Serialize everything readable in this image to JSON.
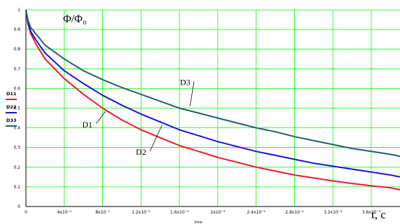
{
  "chart_data": {
    "type": "line",
    "ylabel": "Φ/Φ₀",
    "xlabel": "t, c",
    "xlabel_sub": "time",
    "xlim": [
      0,
      0.00039
    ],
    "ylim": [
      0,
      1
    ],
    "grid": true,
    "grid_color": "#00ff00",
    "x_ticks": [
      {
        "v": 0,
        "label": "0"
      },
      {
        "v": 4e-05,
        "label": "4x10⁻⁵"
      },
      {
        "v": 8e-05,
        "label": "8x10⁻⁵"
      },
      {
        "v": 0.00012,
        "label": "1.2x10⁻⁴"
      },
      {
        "v": 0.00016,
        "label": "1.6x10⁻⁴"
      },
      {
        "v": 0.0002,
        "label": "2x10⁻⁴"
      },
      {
        "v": 0.00024,
        "label": "2.4x10⁻⁴"
      },
      {
        "v": 0.00028,
        "label": "2.8x10⁻⁴"
      },
      {
        "v": 0.00032,
        "label": "3.2x10⁻⁴"
      },
      {
        "v": 0.00036,
        "label": "3.6x10⁻⁴"
      }
    ],
    "y_ticks": [
      {
        "v": 0,
        "label": "0"
      },
      {
        "v": 0.1,
        "label": "0.1"
      },
      {
        "v": 0.2,
        "label": "0.2"
      },
      {
        "v": 0.3,
        "label": "0.3"
      },
      {
        "v": 0.4,
        "label": "0.4"
      },
      {
        "v": 0.5,
        "label": "0.5"
      },
      {
        "v": 0.6,
        "label": "0.6"
      },
      {
        "v": 0.7,
        "label": "0.7"
      },
      {
        "v": 0.8,
        "label": "0.8"
      },
      {
        "v": 0.9,
        "label": "0.9"
      },
      {
        "v": 1,
        "label": "1"
      }
    ],
    "x": [
      0,
      2e-06,
      5e-06,
      1e-05,
      2e-05,
      4e-05,
      6e-05,
      8e-05,
      0.0001,
      0.00012,
      0.00014,
      0.00016,
      0.00018,
      0.0002,
      0.00022,
      0.00024,
      0.00026,
      0.00028,
      0.0003,
      0.00032,
      0.00034,
      0.00036,
      0.00038,
      0.00039
    ],
    "series": [
      {
        "name": "D11",
        "color": "#e8192c",
        "values": [
          1.0,
          0.93,
          0.88,
          0.83,
          0.75,
          0.65,
          0.57,
          0.5,
          0.44,
          0.39,
          0.35,
          0.31,
          0.28,
          0.25,
          0.225,
          0.2,
          0.18,
          0.16,
          0.145,
          0.13,
          0.117,
          0.105,
          0.095,
          0.085
        ]
      },
      {
        "name": "D22",
        "color": "#1515d6",
        "values": [
          1.0,
          0.94,
          0.89,
          0.85,
          0.78,
          0.69,
          0.625,
          0.565,
          0.515,
          0.47,
          0.43,
          0.39,
          0.36,
          0.33,
          0.305,
          0.28,
          0.26,
          0.24,
          0.22,
          0.205,
          0.19,
          0.175,
          0.16,
          0.15
        ]
      },
      {
        "name": "D33",
        "color": "#1f5f6f",
        "values": [
          1.0,
          0.95,
          0.91,
          0.88,
          0.82,
          0.75,
          0.69,
          0.645,
          0.605,
          0.57,
          0.535,
          0.5,
          0.475,
          0.45,
          0.425,
          0.4,
          0.38,
          0.355,
          0.335,
          0.315,
          0.295,
          0.28,
          0.265,
          0.255
        ]
      }
    ],
    "legend": [
      {
        "label": "D11",
        "color": "#e8192c"
      },
      {
        "label": "D22",
        "color": "#1515d6"
      },
      {
        "label": "D33",
        "color": "#1f5f6f"
      }
    ],
    "annotations": [
      {
        "text": "D1",
        "x": 6.6e-05,
        "y": 0.41,
        "px": 8.3e-05,
        "py": 0.485
      },
      {
        "text": "D2",
        "x": 0.000122,
        "y": 0.27,
        "px": 0.000142,
        "py": 0.415
      },
      {
        "text": "D3",
        "x": 0.000168,
        "y": 0.625,
        "px": 0.000171,
        "py": 0.51
      }
    ]
  }
}
